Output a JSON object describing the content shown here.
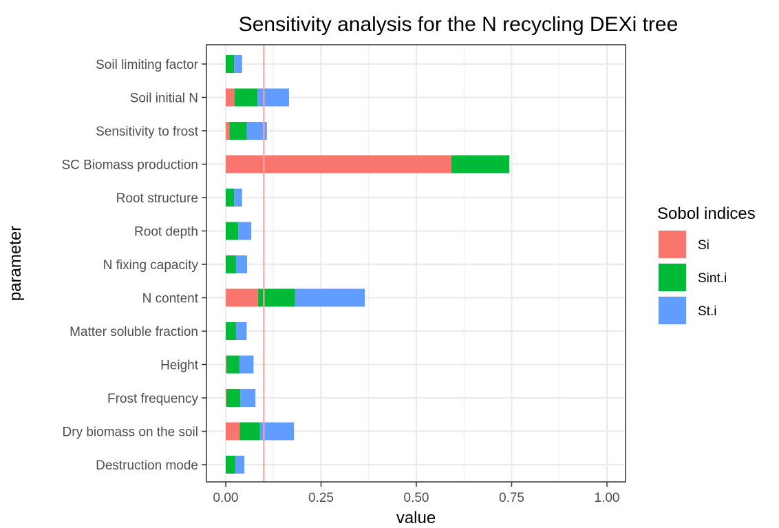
{
  "chart_data": {
    "type": "bar",
    "orientation": "horizontal",
    "stacked": true,
    "title": "Sensitivity analysis for the N recycling DEXi tree",
    "xlabel": "value",
    "ylabel": "parameter",
    "xlim": [
      0,
      1
    ],
    "xticks": [
      "0.00",
      "0.25",
      "0.50",
      "0.75",
      "1.00"
    ],
    "grid": true,
    "reference_line": {
      "value": 0.1,
      "color": "#F8A3A3"
    },
    "categories": [
      "Soil limiting factor",
      "Soil initial N",
      "Sensitivity to frost",
      "SC Biomass production",
      "Root structure",
      "Root depth",
      "N fixing capacity",
      "N content",
      "Matter soluble fraction",
      "Height",
      "Frost frequency",
      "Dry biomass on the soil",
      "Destruction mode"
    ],
    "series": [
      {
        "name": "Si",
        "color": "#F8766D",
        "values": [
          0.0,
          0.023,
          0.01,
          0.592,
          0.0,
          0.0,
          0.0,
          0.085,
          0.0,
          0.002,
          0.002,
          0.037,
          0.0
        ]
      },
      {
        "name": "Sint.i",
        "color": "#00BA38",
        "values": [
          0.022,
          0.06,
          0.045,
          0.152,
          0.022,
          0.033,
          0.027,
          0.097,
          0.027,
          0.034,
          0.036,
          0.053,
          0.025
        ]
      },
      {
        "name": "St.i",
        "color": "#619CFF",
        "values": [
          0.021,
          0.083,
          0.053,
          0.0,
          0.021,
          0.034,
          0.029,
          0.183,
          0.028,
          0.037,
          0.04,
          0.089,
          0.024
        ]
      }
    ],
    "legend": {
      "title": "Sobol indices",
      "position": "right",
      "entries": [
        "Si",
        "Sint.i",
        "St.i"
      ]
    }
  }
}
